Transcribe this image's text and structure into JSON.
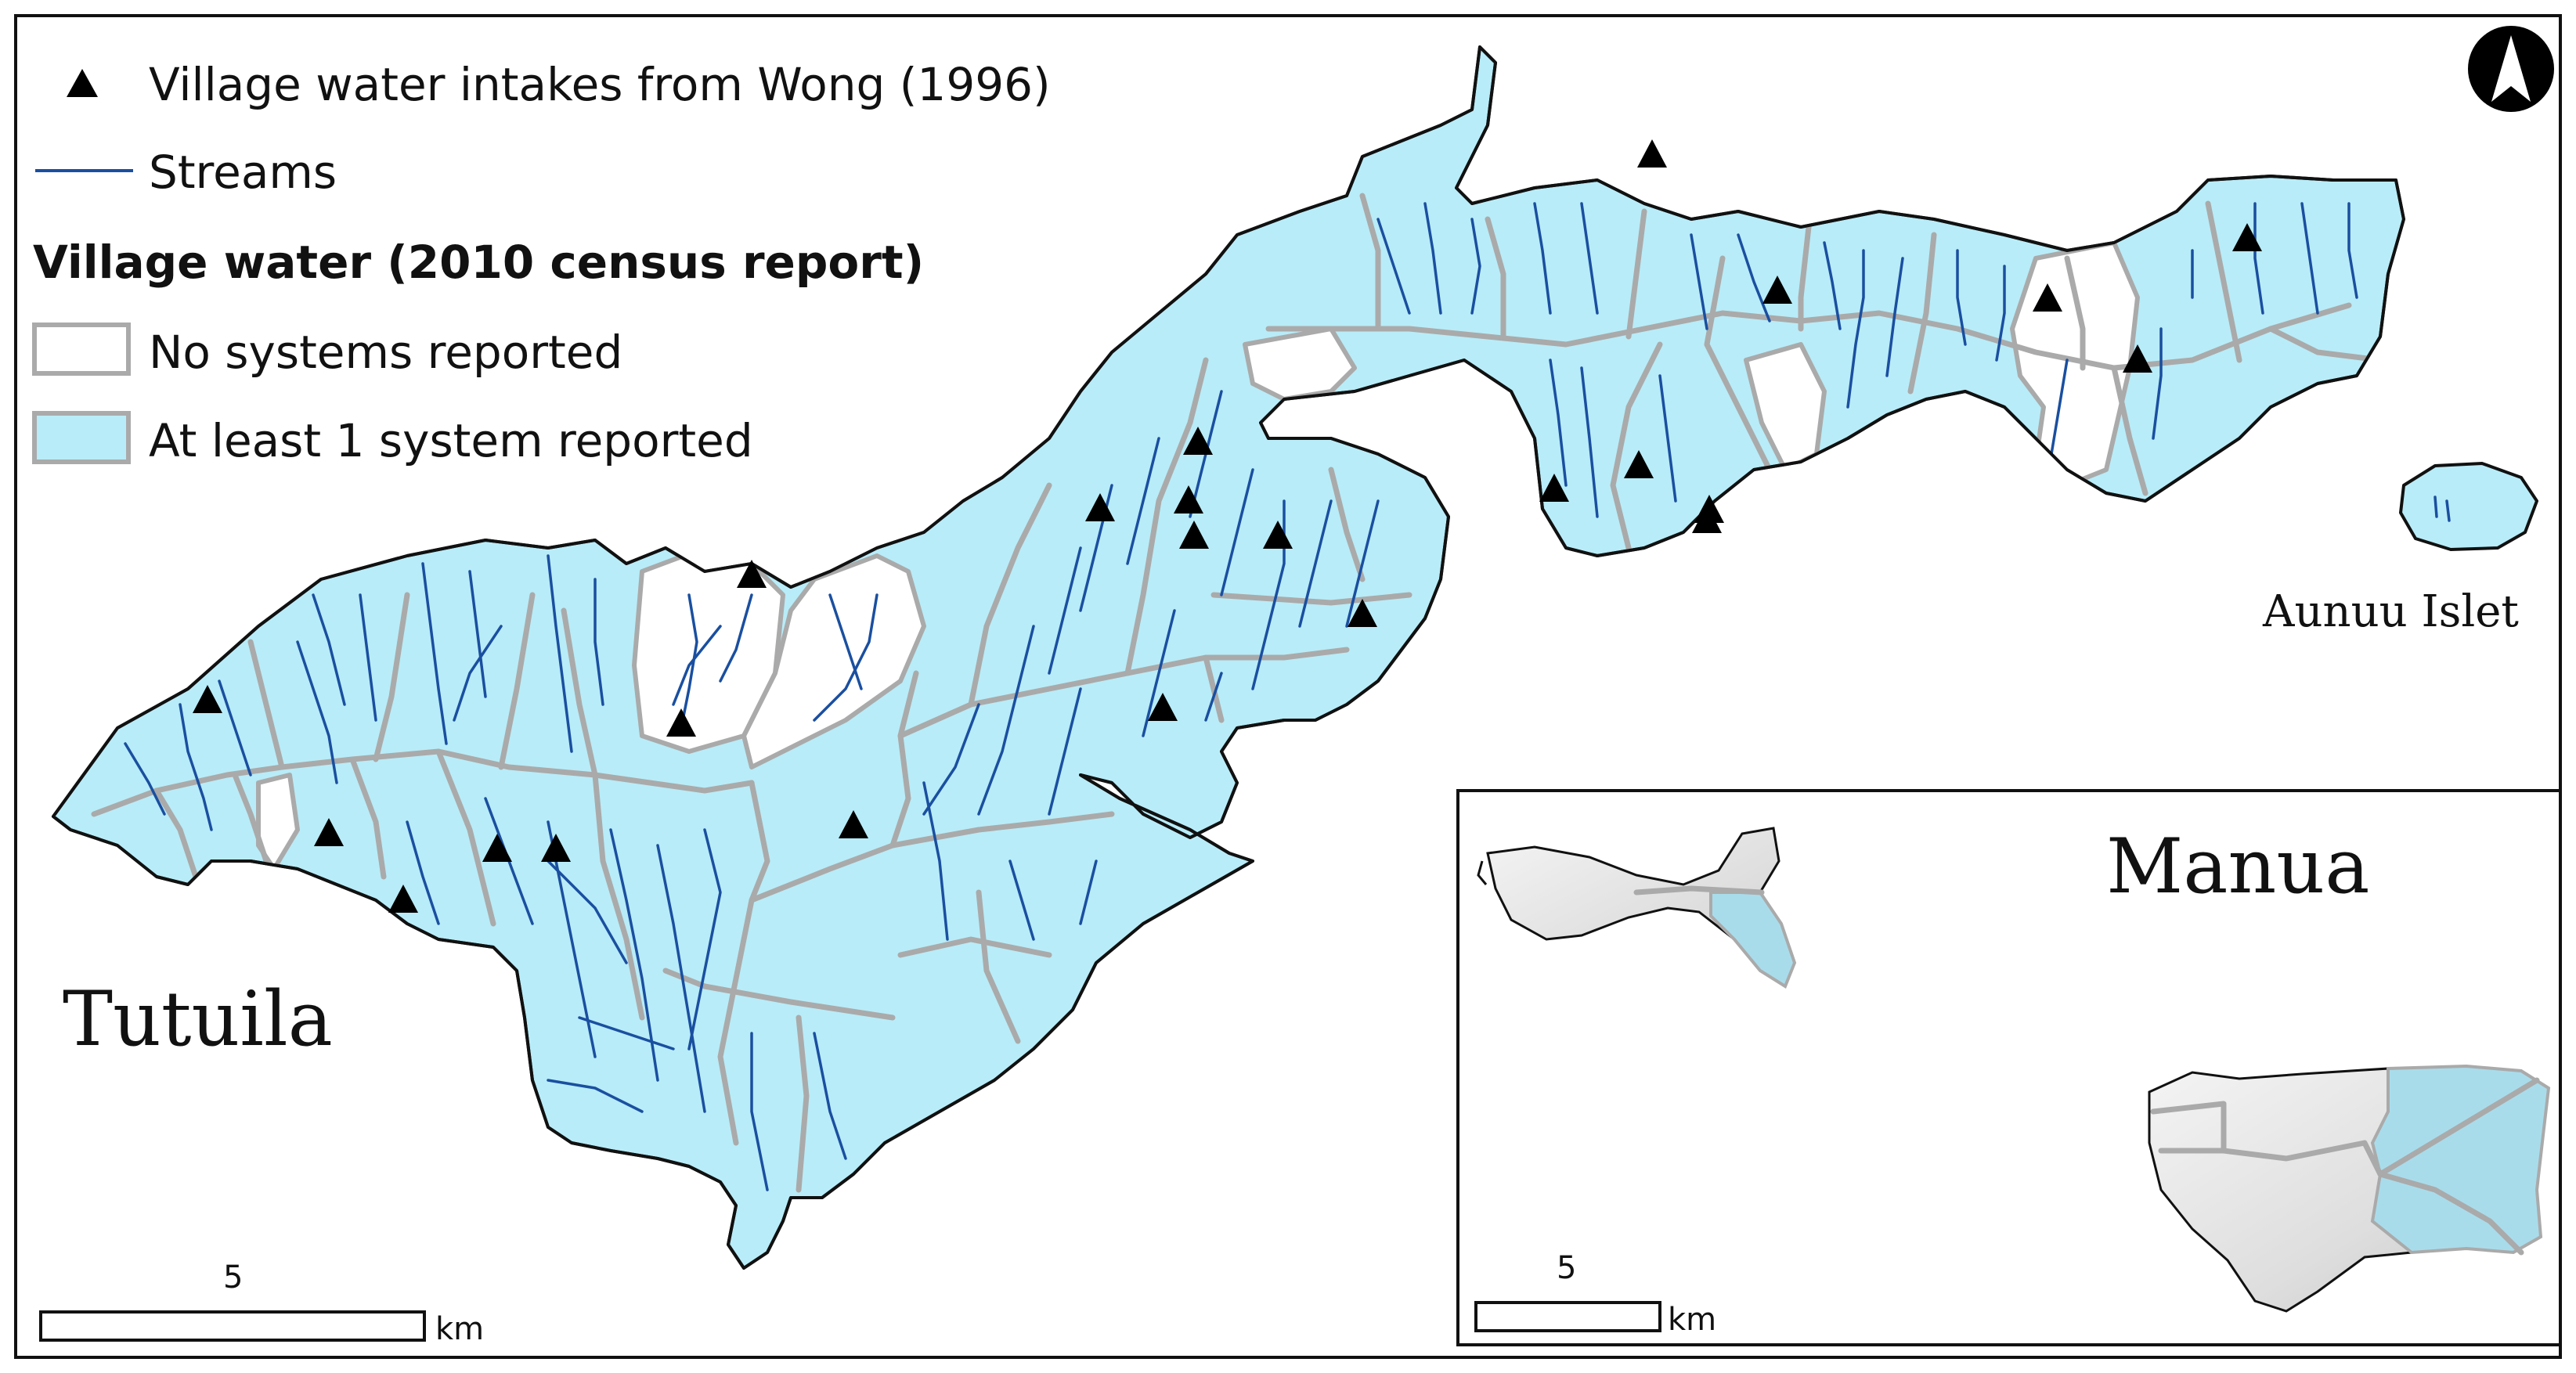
{
  "legend": {
    "intakes_label": "Village water intakes from Wong (1996)",
    "streams_label": "Streams",
    "title": "Village water (2010 census report)",
    "no_systems_label": "No systems reported",
    "at_least_one_label": "At least 1 system reported"
  },
  "labels": {
    "main_island": "Tutuila",
    "islet": "Aunuu Islet",
    "inset_region": "Manua"
  },
  "scale_bar": {
    "main_value": "5",
    "main_unit": "km",
    "inset_value": "5",
    "inset_unit": "km"
  },
  "colors": {
    "at_least_one_system": "#b8ecf8",
    "no_systems": "#ffffff",
    "streams": "#1a4fa0",
    "village_boundaries": "#aaaaaa",
    "manua_terrain": "#dcdcdc"
  },
  "icons": {
    "north_arrow": "north-arrow-icon",
    "intake_symbol": "triangle-icon"
  },
  "intake_count": 24
}
